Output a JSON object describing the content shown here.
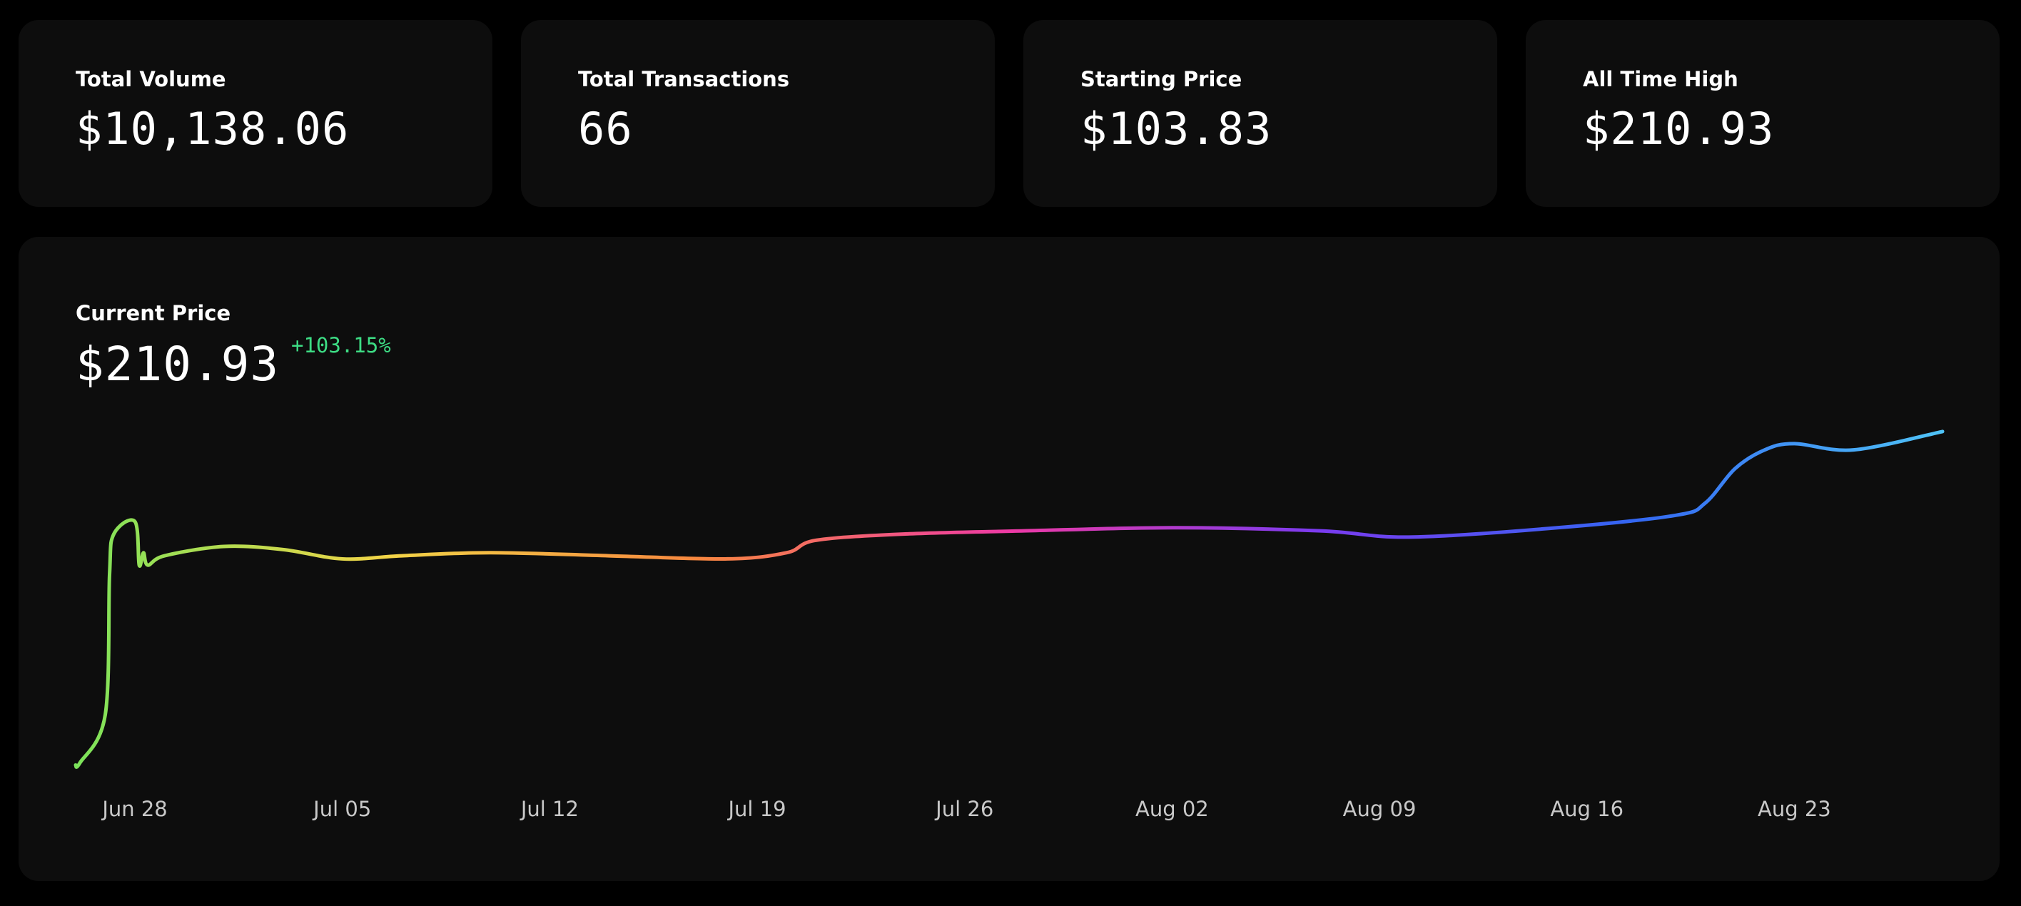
{
  "stats": [
    {
      "label": "Total Volume",
      "value": "$10,138.06"
    },
    {
      "label": "Total Transactions",
      "value": "66"
    },
    {
      "label": "Starting Price",
      "value": "$103.83"
    },
    {
      "label": "All Time High",
      "value": "$210.93"
    }
  ],
  "current": {
    "label": "Current Price",
    "value": "$210.93",
    "change": "+103.15%",
    "change_color": "#3ddc84"
  },
  "colors": {
    "background": "#000000",
    "card": "#0d0d0d",
    "gradient": [
      "#7be35a",
      "#f2d447",
      "#f7873f",
      "#ee3aa5",
      "#7a3bf0",
      "#3366f2",
      "#4fc3f7"
    ]
  },
  "chart_data": {
    "type": "line",
    "title": "",
    "xlabel": "",
    "ylabel": "",
    "xticks": [
      "Jun 28",
      "Jul 05",
      "Jul 12",
      "Jul 19",
      "Jul 26",
      "Aug 02",
      "Aug 09",
      "Aug 16",
      "Aug 23"
    ],
    "ylim": [
      100,
      215
    ],
    "grid": false,
    "x": [
      "Jun 26",
      "Jun 26",
      "Jun 27",
      "Jun 27",
      "Jun 27",
      "Jun 28",
      "Jun 28",
      "Jun 28",
      "Jun 28",
      "Jun 29",
      "Jul 01",
      "Jul 03",
      "Jul 05",
      "Jul 07",
      "Jul 10",
      "Jul 14",
      "Jul 18",
      "Jul 20",
      "Jul 21",
      "Jul 24",
      "Jul 28",
      "Aug 02",
      "Aug 07",
      "Aug 10",
      "Aug 15",
      "Aug 19",
      "Aug 20",
      "Aug 21",
      "Aug 22",
      "Aug 23",
      "Aug 25",
      "Aug 28"
    ],
    "values": [
      103.8,
      104.5,
      120,
      165,
      178,
      182,
      168,
      172,
      168,
      171,
      174,
      173,
      170,
      171,
      172,
      171,
      170,
      172,
      176,
      178,
      179,
      180,
      179,
      177,
      180,
      184,
      188,
      199,
      205,
      207,
      205,
      210.9
    ]
  }
}
